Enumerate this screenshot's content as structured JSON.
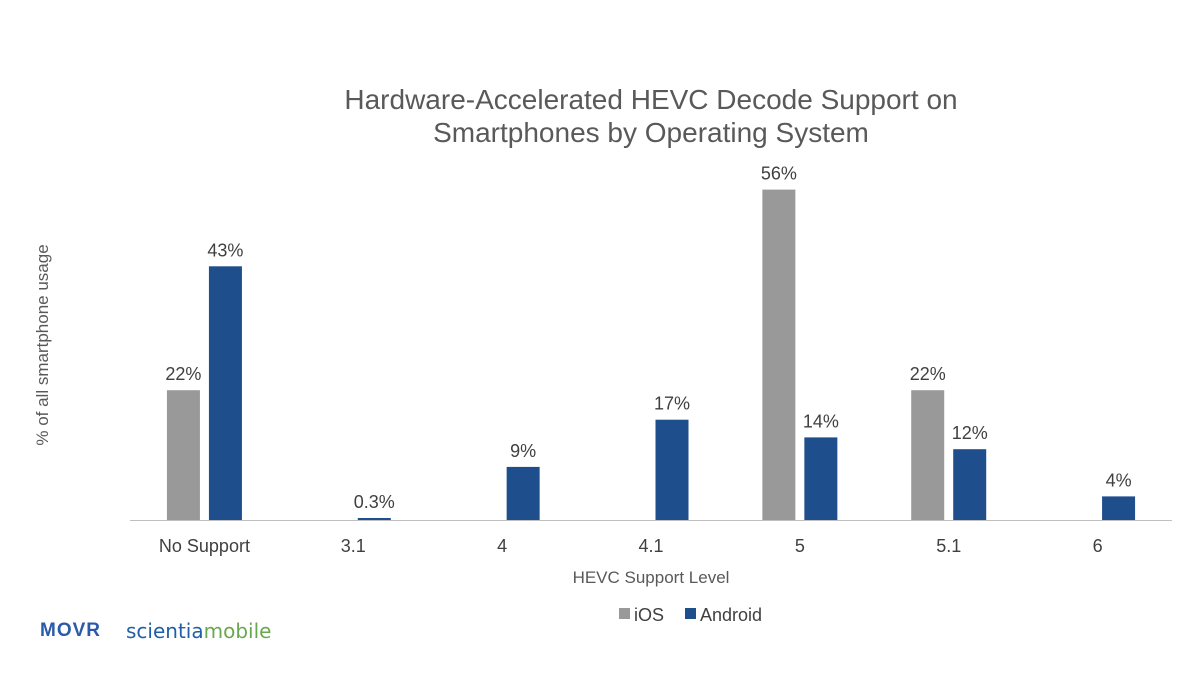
{
  "chart_data": {
    "type": "bar",
    "title_lines": [
      "Hardware-Accelerated HEVC Decode Support on",
      "Smartphones by Operating System"
    ],
    "xlabel": "HEVC Support Level",
    "ylabel": "% of all smartphone usage",
    "categories": [
      "No Support",
      "3.1",
      "4",
      "4.1",
      "5",
      "5.1",
      "6"
    ],
    "series": [
      {
        "name": "iOS",
        "color": "#999999",
        "values": [
          22,
          null,
          null,
          null,
          56,
          22,
          null
        ]
      },
      {
        "name": "Android",
        "color": "#1f4e8c",
        "values": [
          43,
          0.3,
          9,
          17,
          14,
          12,
          4
        ]
      }
    ],
    "data_labels": {
      "iOS": [
        "22%",
        "",
        "",
        "",
        "56%",
        "22%",
        ""
      ],
      "Android": [
        "43%",
        "0.3%",
        "9%",
        "17%",
        "14%",
        "12%",
        "4%"
      ]
    },
    "ylim": [
      0,
      60
    ],
    "grid": false,
    "legend_position": "bottom"
  },
  "logos": {
    "movr": "MOVR",
    "scientia_a": "scientia",
    "scientia_b": "mobile"
  }
}
